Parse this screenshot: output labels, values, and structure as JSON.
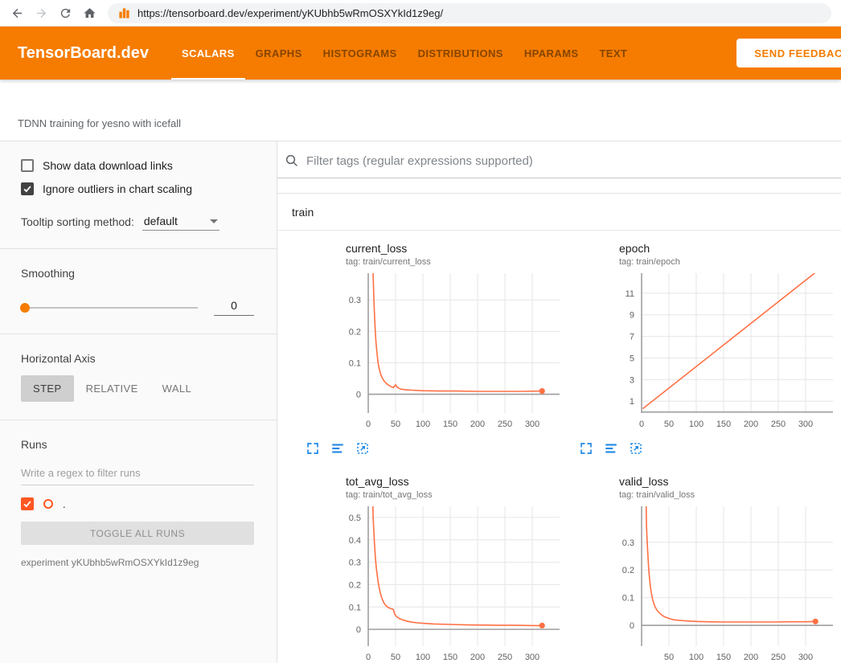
{
  "browser": {
    "url": "https://tensorboard.dev/experiment/yKUbhb5wRmOSXYkId1z9eg/"
  },
  "header": {
    "logo": "TensorBoard.dev",
    "tabs": [
      {
        "label": "SCALARS",
        "active": true
      },
      {
        "label": "GRAPHS",
        "active": false
      },
      {
        "label": "HISTOGRAMS",
        "active": false
      },
      {
        "label": "DISTRIBUTIONS",
        "active": false
      },
      {
        "label": "HPARAMS",
        "active": false
      },
      {
        "label": "TEXT",
        "active": false
      }
    ],
    "feedback_button": "SEND FEEDBACK"
  },
  "experiment": {
    "title": "TDNN training for yesno with icefall"
  },
  "sidebar": {
    "show_download_label": "Show data download links",
    "show_download_checked": false,
    "ignore_outliers_label": "Ignore outliers in chart scaling",
    "ignore_outliers_checked": true,
    "tooltip_sorting_label": "Tooltip sorting method:",
    "tooltip_sorting_value": "default",
    "smoothing_label": "Smoothing",
    "smoothing_value": "0",
    "horizontal_axis_label": "Horizontal Axis",
    "axis_buttons": [
      "STEP",
      "RELATIVE",
      "WALL"
    ],
    "axis_active": "STEP",
    "runs_label": "Runs",
    "runs_filter_placeholder": "Write a regex to filter runs",
    "run_name": ".",
    "run_checked": true,
    "toggle_all_label": "TOGGLE ALL RUNS",
    "experiment_id_label": "experiment yKUbhb5wRmOSXYkId1z9eg"
  },
  "main": {
    "filter_placeholder": "Filter tags (regular expressions supported)",
    "group_label": "train"
  },
  "colors": {
    "header_orange": "#f57c00",
    "run_color": "#ff7043",
    "run_swatch": "#ff5722",
    "icon_blue": "#1e88e5",
    "grid": "#e6e6e6",
    "axis": "#9e9e9e"
  },
  "chart_data": [
    {
      "type": "line",
      "title": "current_loss",
      "tag": "tag: train/current_loss",
      "xlim": [
        0,
        350
      ],
      "ylim": [
        -0.06,
        0.385
      ],
      "xticks": [
        0,
        50,
        100,
        150,
        200,
        250,
        300
      ],
      "yticks": [
        0,
        0.1,
        0.2,
        0.3
      ],
      "series": [
        {
          "name": ".",
          "color": "#ff7043",
          "end_dot": true,
          "points": [
            [
              8,
              0.45
            ],
            [
              9,
              0.38
            ],
            [
              10,
              0.32
            ],
            [
              11,
              0.27
            ],
            [
              12,
              0.23
            ],
            [
              13,
              0.2
            ],
            [
              14,
              0.17
            ],
            [
              15,
              0.15
            ],
            [
              16,
              0.13
            ],
            [
              18,
              0.1
            ],
            [
              20,
              0.082
            ],
            [
              22,
              0.068
            ],
            [
              24,
              0.058
            ],
            [
              26,
              0.051
            ],
            [
              28,
              0.045
            ],
            [
              30,
              0.04
            ],
            [
              34,
              0.033
            ],
            [
              38,
              0.028
            ],
            [
              42,
              0.024
            ],
            [
              46,
              0.021
            ],
            [
              50,
              0.03
            ],
            [
              52,
              0.024
            ],
            [
              56,
              0.019
            ],
            [
              60,
              0.016
            ],
            [
              70,
              0.014
            ],
            [
              80,
              0.013
            ],
            [
              100,
              0.011
            ],
            [
              130,
              0.01
            ],
            [
              160,
              0.01
            ],
            [
              200,
              0.009
            ],
            [
              240,
              0.009
            ],
            [
              280,
              0.009
            ],
            [
              318,
              0.01
            ]
          ]
        }
      ]
    },
    {
      "type": "line",
      "title": "epoch",
      "tag": "tag: train/epoch",
      "xlim": [
        0,
        350
      ],
      "ylim": [
        -0.1,
        12.85
      ],
      "xticks": [
        0,
        50,
        100,
        150,
        200,
        250,
        300
      ],
      "yticks": [
        1,
        3,
        5,
        7,
        9,
        11
      ],
      "series": [
        {
          "name": ".",
          "color": "#ff7043",
          "end_dot": false,
          "points": [
            [
              2,
              0.3
            ],
            [
              330,
              13.4
            ]
          ]
        }
      ]
    },
    {
      "type": "line",
      "title": "tot_avg_loss",
      "tag": "tag: train/tot_avg_loss",
      "xlim": [
        0,
        350
      ],
      "ylim": [
        -0.075,
        0.55
      ],
      "xticks": [
        0,
        50,
        100,
        150,
        200,
        250,
        300
      ],
      "yticks": [
        0,
        0.1,
        0.2,
        0.3,
        0.4,
        0.5
      ],
      "series": [
        {
          "name": ".",
          "color": "#ff7043",
          "end_dot": true,
          "points": [
            [
              8,
              0.6
            ],
            [
              9,
              0.5
            ],
            [
              10,
              0.45
            ],
            [
              11,
              0.4
            ],
            [
              12,
              0.36
            ],
            [
              13,
              0.325
            ],
            [
              14,
              0.295
            ],
            [
              15,
              0.27
            ],
            [
              16,
              0.25
            ],
            [
              18,
              0.215
            ],
            [
              20,
              0.185
            ],
            [
              22,
              0.163
            ],
            [
              24,
              0.146
            ],
            [
              26,
              0.133
            ],
            [
              28,
              0.122
            ],
            [
              30,
              0.113
            ],
            [
              34,
              0.102
            ],
            [
              38,
              0.096
            ],
            [
              42,
              0.092
            ],
            [
              46,
              0.089
            ],
            [
              48,
              0.07
            ],
            [
              50,
              0.062
            ],
            [
              54,
              0.053
            ],
            [
              58,
              0.047
            ],
            [
              62,
              0.043
            ],
            [
              70,
              0.037
            ],
            [
              80,
              0.032
            ],
            [
              90,
              0.029
            ],
            [
              100,
              0.027
            ],
            [
              120,
              0.024
            ],
            [
              150,
              0.022
            ],
            [
              180,
              0.02
            ],
            [
              210,
              0.019
            ],
            [
              240,
              0.018
            ],
            [
              270,
              0.018
            ],
            [
              300,
              0.017
            ],
            [
              318,
              0.017
            ]
          ]
        }
      ]
    },
    {
      "type": "line",
      "title": "valid_loss",
      "tag": "tag: train/valid_loss",
      "xlim": [
        0,
        350
      ],
      "ylim": [
        -0.075,
        0.43
      ],
      "xticks": [
        50,
        100,
        150,
        200,
        250,
        300
      ],
      "yticks": [
        0,
        0.1,
        0.2,
        0.3
      ],
      "series": [
        {
          "name": ".",
          "color": "#ff7043",
          "end_dot": true,
          "points": [
            [
              8,
              0.48
            ],
            [
              9,
              0.36
            ],
            [
              10,
              0.31
            ],
            [
              11,
              0.27
            ],
            [
              12,
              0.235
            ],
            [
              13,
              0.205
            ],
            [
              14,
              0.18
            ],
            [
              15,
              0.16
            ],
            [
              16,
              0.142
            ],
            [
              18,
              0.115
            ],
            [
              20,
              0.095
            ],
            [
              22,
              0.081
            ],
            [
              24,
              0.07
            ],
            [
              26,
              0.062
            ],
            [
              28,
              0.055
            ],
            [
              30,
              0.05
            ],
            [
              34,
              0.042
            ],
            [
              38,
              0.036
            ],
            [
              42,
              0.031
            ],
            [
              46,
              0.028
            ],
            [
              50,
              0.025
            ],
            [
              55,
              0.022
            ],
            [
              60,
              0.02
            ],
            [
              70,
              0.018
            ],
            [
              80,
              0.016
            ],
            [
              100,
              0.014
            ],
            [
              120,
              0.013
            ],
            [
              150,
              0.012
            ],
            [
              180,
              0.012
            ],
            [
              210,
              0.012
            ],
            [
              240,
              0.012
            ],
            [
              270,
              0.013
            ],
            [
              300,
              0.013
            ],
            [
              318,
              0.014
            ]
          ]
        }
      ]
    }
  ]
}
